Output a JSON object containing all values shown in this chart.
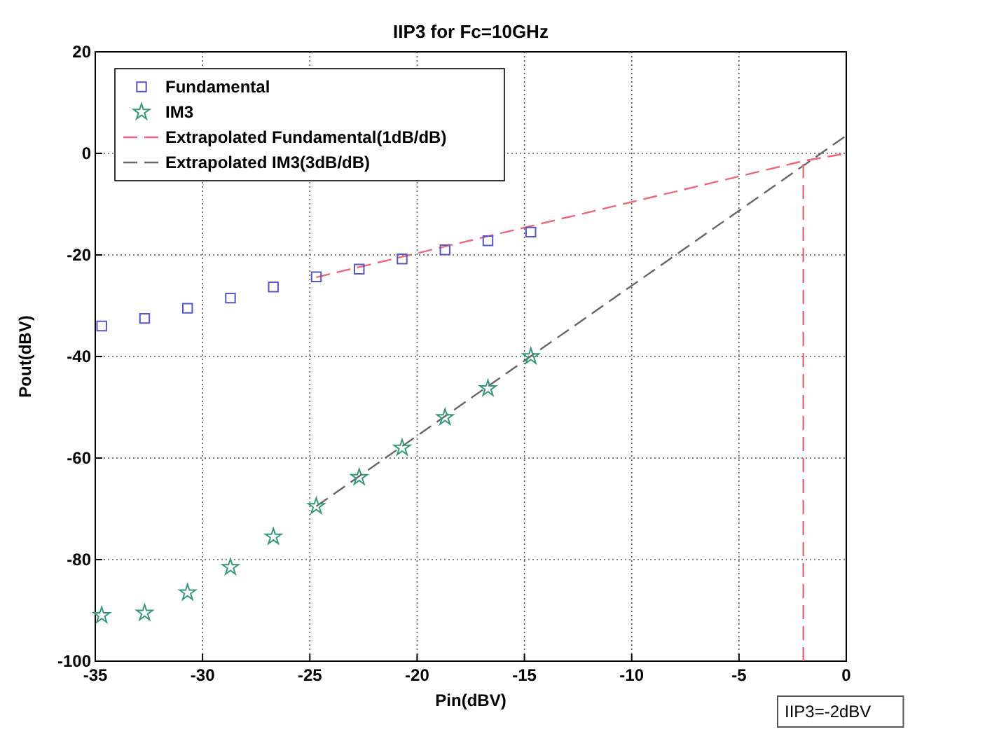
{
  "chart_data": {
    "type": "scatter",
    "title": "IIP3 for Fc=10GHz",
    "xlabel": "Pin(dBV)",
    "ylabel": "Pout(dBV)",
    "xlim": [
      -35,
      0
    ],
    "xticks": [
      -35,
      -30,
      -25,
      -20,
      -15,
      -10,
      -5,
      0
    ],
    "ylim": [
      -100,
      20
    ],
    "yticks": [
      -100,
      -80,
      -60,
      -40,
      -20,
      0,
      20
    ],
    "grid": true,
    "legend": "top left",
    "annotations": [
      "IIP3=-2dBV"
    ],
    "series": [
      {
        "name": "Fundamental",
        "marker": "square",
        "color": "#5555cc",
        "x": [
          -34.7,
          -32.7,
          -30.7,
          -28.7,
          -26.7,
          -24.7,
          -22.7,
          -20.7,
          -18.7,
          -16.7,
          -14.7
        ],
        "values": [
          -34,
          -32.5,
          -30.5,
          -28.5,
          -26.3,
          -24.3,
          -22.8,
          -20.8,
          -19,
          -17.2,
          -15.5
        ]
      },
      {
        "name": "IM3",
        "marker": "star",
        "color": "#339977",
        "x": [
          -34.7,
          -32.7,
          -30.7,
          -28.7,
          -26.7,
          -24.7,
          -22.7,
          -20.7,
          -18.7,
          -16.7,
          -14.7
        ],
        "values": [
          -91,
          -90.5,
          -86.5,
          -81.5,
          -75.5,
          -69.5,
          -63.8,
          -58,
          -52,
          -46.3,
          -40
        ]
      },
      {
        "name": "Extrapolated Fundamental(1dB/dB)",
        "type": "line",
        "line_style": "dashed",
        "color": "#ee6677",
        "x": [
          -24.7,
          -2,
          0
        ],
        "values": [
          -24.4,
          -1.5,
          0
        ]
      },
      {
        "name": "Extrapolated IM3(3dB/dB)",
        "type": "line",
        "line_style": "dashed",
        "color": "#666666",
        "x": [
          -24.7,
          0
        ],
        "values": [
          -69.5,
          3.5
        ]
      },
      {
        "type": "line",
        "line_style": "dashed",
        "color": "#ee6677",
        "x": [
          -2,
          -2
        ],
        "values": [
          -100,
          -1.5
        ]
      }
    ]
  }
}
